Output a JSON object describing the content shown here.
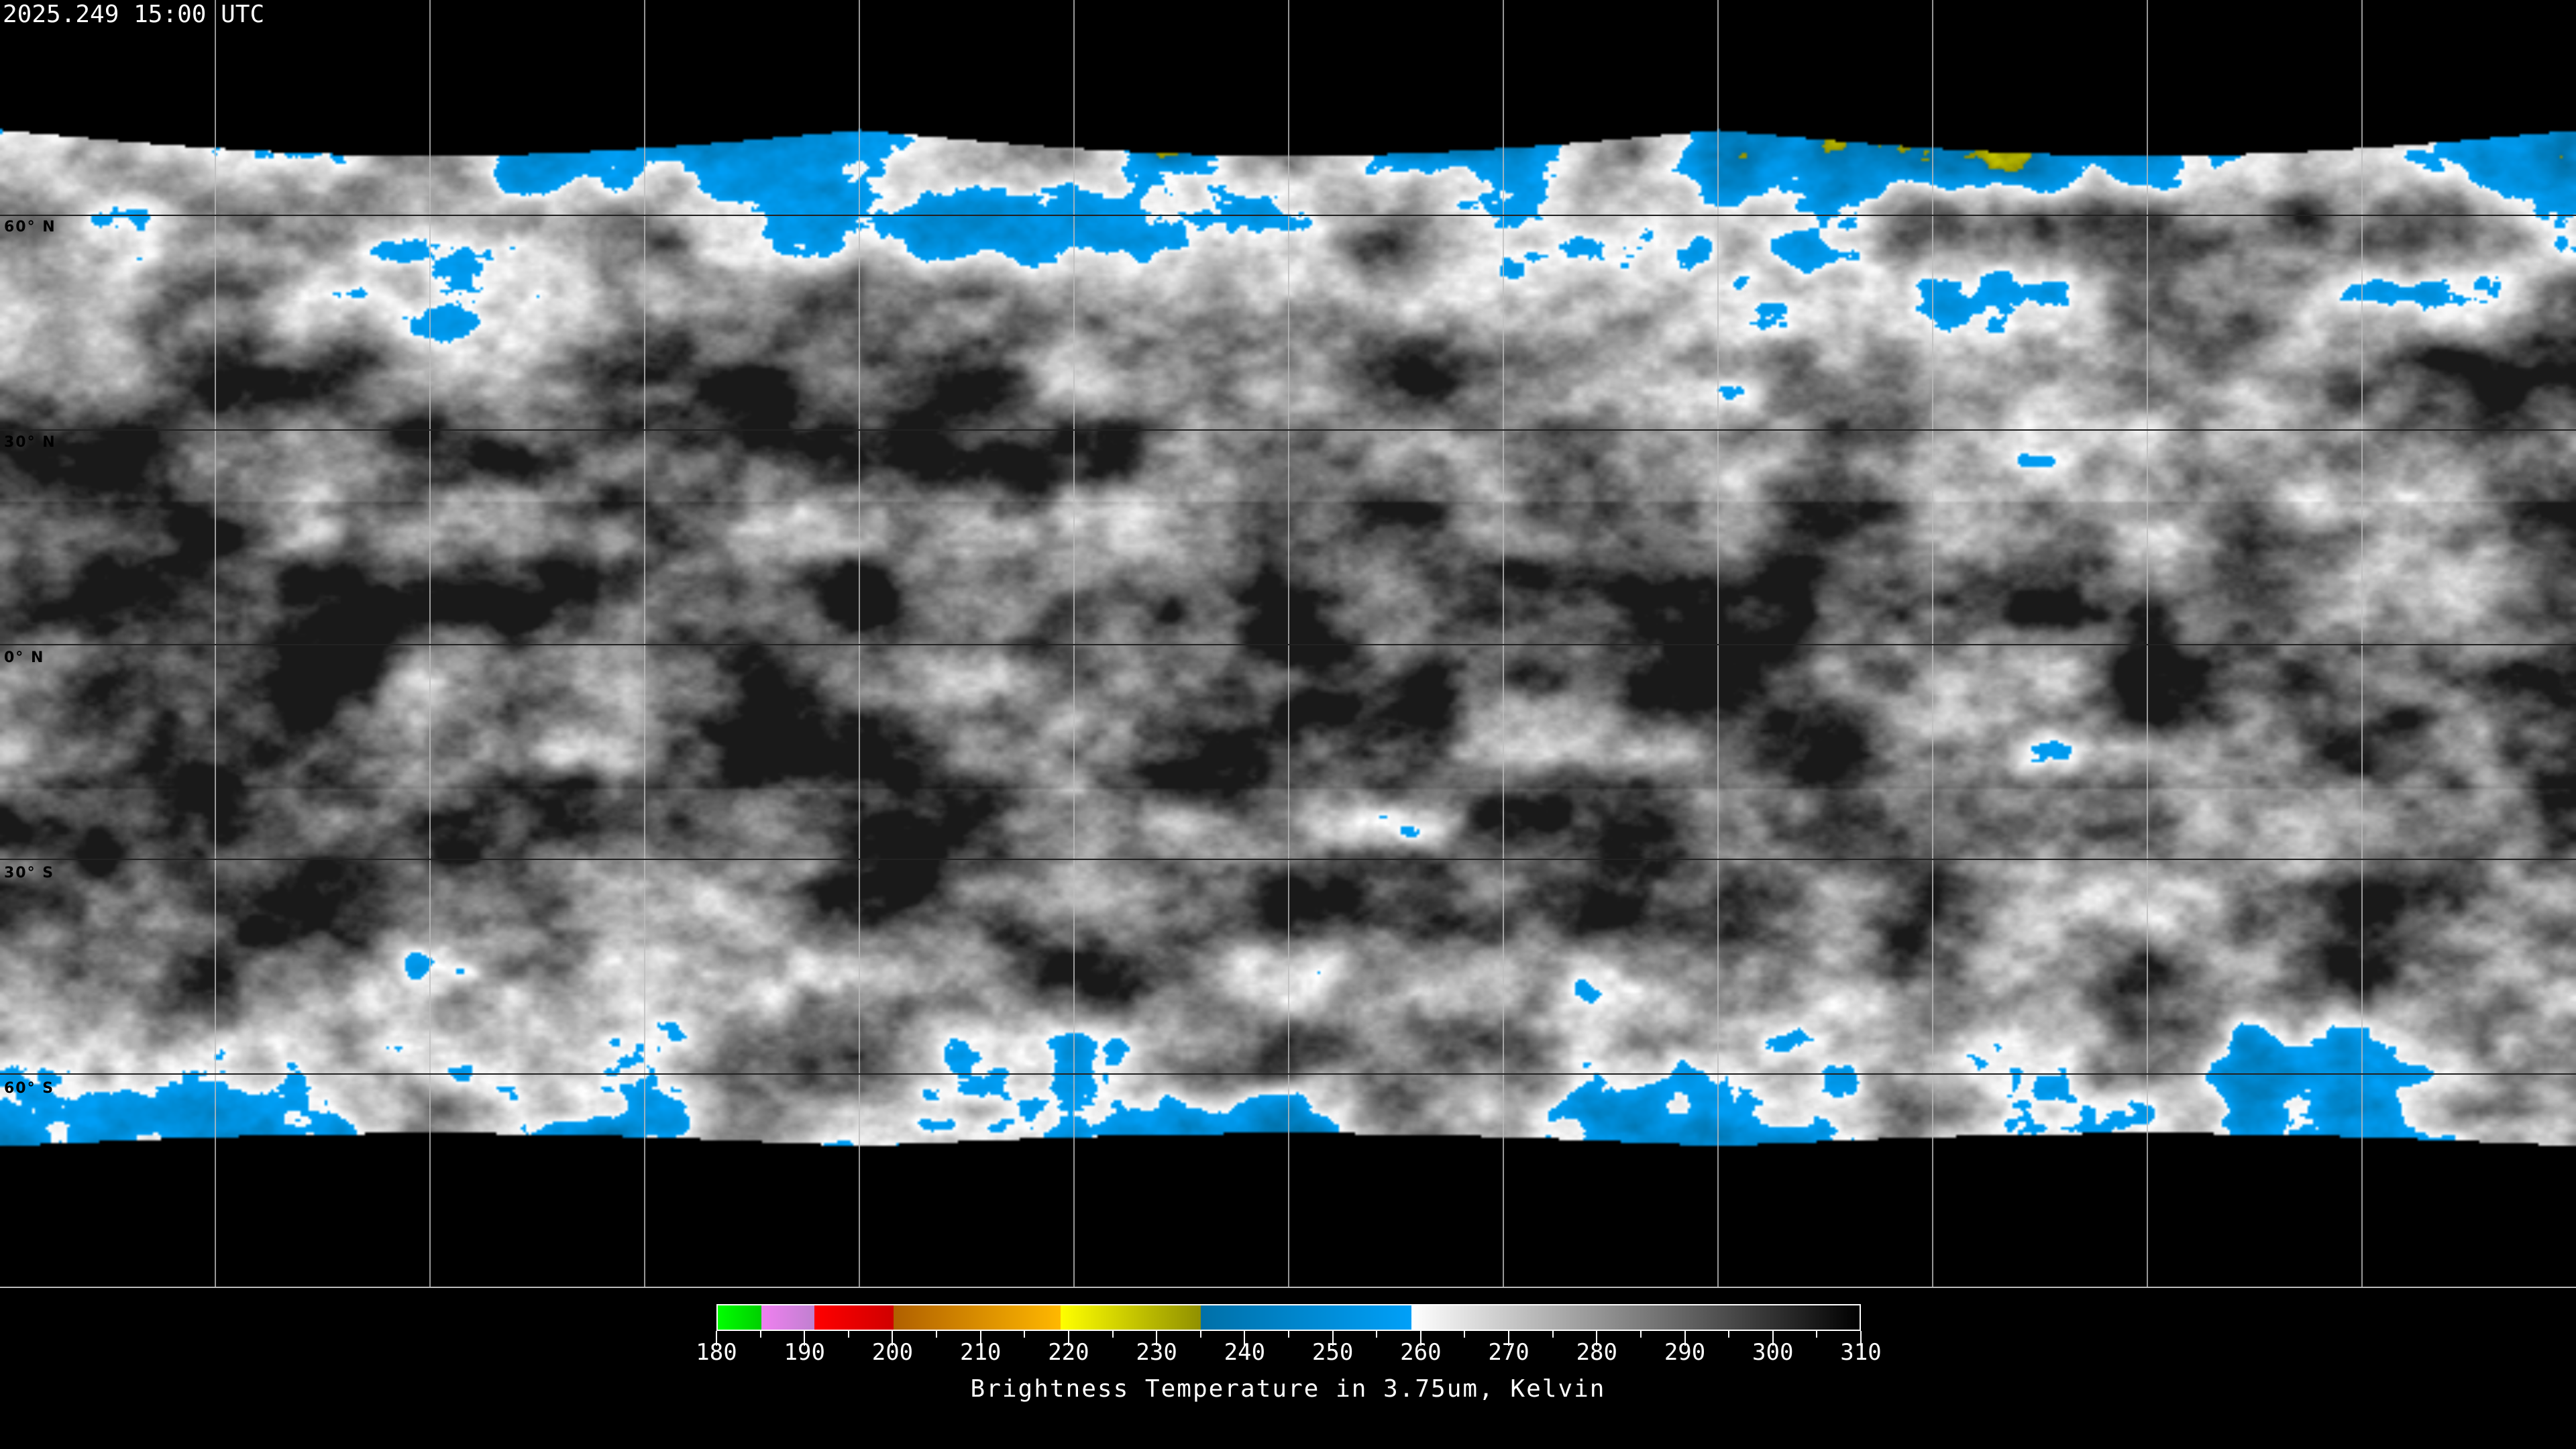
{
  "timestamp": "2025.249 15:00 UTC",
  "map": {
    "projection": "equirectangular",
    "grid_spacing_degrees": 30,
    "lat_labels": [
      "60° N",
      "30° N",
      "0° N",
      "30° S",
      "60° S"
    ]
  },
  "colorbar": {
    "title": "Brightness Temperature in 3.75um, Kelvin",
    "range": [
      180,
      310
    ],
    "tick_labels": [
      "180",
      "190",
      "200",
      "210",
      "220",
      "230",
      "240",
      "250",
      "260",
      "270",
      "280",
      "290",
      "300",
      "310"
    ],
    "segments": [
      {
        "from": 180,
        "to": 185,
        "colors": [
          "#00ff00",
          "#00d000"
        ]
      },
      {
        "from": 185,
        "to": 191,
        "colors": [
          "#f080f0",
          "#c080d0"
        ]
      },
      {
        "from": 191,
        "to": 200,
        "colors": [
          "#ff0000",
          "#d00000"
        ]
      },
      {
        "from": 200,
        "to": 219,
        "colors": [
          "#b06000",
          "#ffb800"
        ]
      },
      {
        "from": 219,
        "to": 235,
        "colors": [
          "#ffff00",
          "#909000"
        ]
      },
      {
        "from": 235,
        "to": 259,
        "colors": [
          "#0070a8",
          "#00a0f8"
        ]
      },
      {
        "from": 259,
        "to": 310,
        "colors": [
          "#ffffff",
          "#000000"
        ]
      }
    ]
  }
}
